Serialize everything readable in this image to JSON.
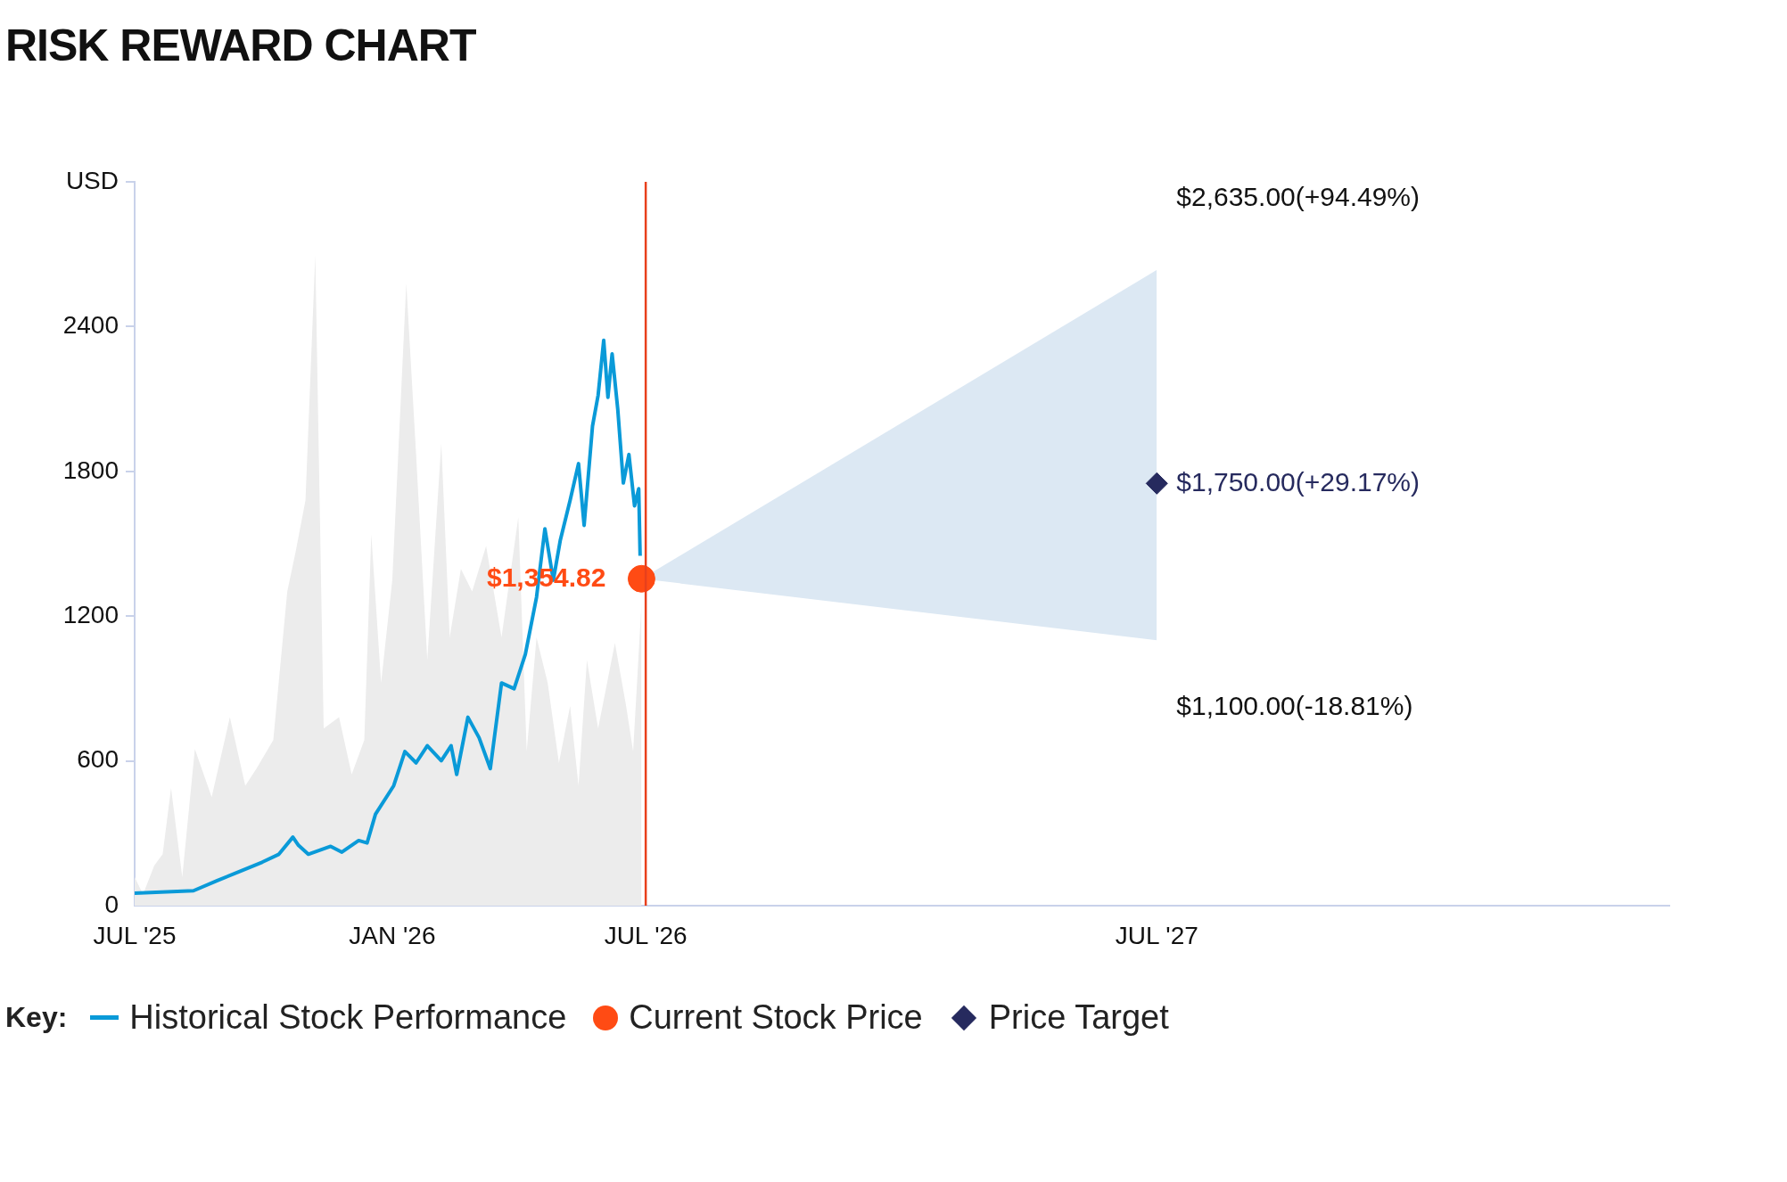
{
  "chart_data": {
    "type": "line",
    "title": "RISK REWARD CHART",
    "legend_title": "Key:",
    "legend": "bottom",
    "xlim": [
      "2025-07-01",
      "2028-07-01"
    ],
    "xticks": [
      {
        "value": "2025-07-01",
        "label": "JUL '25"
      },
      {
        "value": "2026-01-01",
        "label": "JAN '26"
      },
      {
        "value": "2026-07-01",
        "label": "JUL '26"
      },
      {
        "value": "2027-07-01",
        "label": "JUL '27"
      }
    ],
    "ylim": [
      0,
      3000
    ],
    "yticks": [
      0,
      600,
      1200,
      1800,
      2400,
      {
        "value": 3000,
        "label": "USD"
      }
    ],
    "ref_lines": [
      {
        "axis": "x",
        "value": "2026-07-01",
        "label": null,
        "color": "#e8401c"
      }
    ],
    "annotations": [
      {
        "text": "$2,635.00(+94.49%)",
        "x": "2027-07-01",
        "y": 2635
      },
      {
        "text": "$1,100.00(-18.81%)",
        "x": "2027-07-01",
        "y": 1100
      }
    ],
    "series": [
      {
        "type": "area",
        "color": "#ececec",
        "x": [
          "2025-07-01",
          "2025-07-07",
          "2025-07-15",
          "2025-07-21",
          "2025-07-27",
          "2025-08-04",
          "2025-08-13",
          "2025-08-25",
          "2025-09-07",
          "2025-09-18",
          "2025-09-26",
          "2025-10-08",
          "2025-10-18",
          "2025-10-24",
          "2025-10-31",
          "2025-11-07",
          "2025-11-13",
          "2025-11-24",
          "2025-12-03",
          "2025-12-12",
          "2025-12-17",
          "2025-12-24",
          "2026-01-01",
          "2026-01-11",
          "2026-01-18",
          "2026-01-26",
          "2026-02-05",
          "2026-02-11",
          "2026-02-19",
          "2026-02-27",
          "2026-03-09",
          "2026-03-20",
          "2026-04-01",
          "2026-04-07",
          "2026-04-14",
          "2026-04-22",
          "2026-04-30",
          "2026-05-08",
          "2026-05-14",
          "2026-05-20",
          "2026-05-28",
          "2026-06-09",
          "2026-06-17",
          "2026-06-22",
          "2026-06-28"
        ],
        "values": [
          118,
          47,
          166,
          213,
          488,
          118,
          649,
          450,
          781,
          497,
          568,
          686,
          1302,
          1468,
          1680,
          2698,
          734,
          781,
          544,
          686,
          1539,
          923,
          1349,
          2580,
          1870,
          1018,
          1917,
          1112,
          1396,
          1302,
          1491,
          1112,
          1610,
          639,
          1112,
          923,
          592,
          828,
          497,
          1018,
          734,
          1089,
          828,
          639,
          1254
        ]
      },
      {
        "name": "Historical Stock Performance",
        "color": "#0a9ad8",
        "marker": "none",
        "x": [
          "2025-07-01",
          "2025-08-12",
          "2025-08-29",
          "2025-09-14",
          "2025-09-30",
          "2025-10-12",
          "2025-10-22",
          "2025-10-26",
          "2025-11-02",
          "2025-11-18",
          "2025-11-26",
          "2025-12-08",
          "2025-12-14",
          "2025-12-20",
          "2026-01-02",
          "2026-01-10",
          "2026-01-18",
          "2026-01-26",
          "2026-02-05",
          "2026-02-12",
          "2026-02-16",
          "2026-02-24",
          "2026-03-04",
          "2026-03-12",
          "2026-03-20",
          "2026-03-29",
          "2026-04-06",
          "2026-04-14",
          "2026-04-20",
          "2026-04-26",
          "2026-05-01",
          "2026-05-08",
          "2026-05-14",
          "2026-05-18",
          "2026-05-24",
          "2026-05-28",
          "2026-06-01",
          "2026-06-04",
          "2026-06-07",
          "2026-06-11",
          "2026-06-15",
          "2026-06-19",
          "2026-06-23",
          "2026-06-26",
          "2026-06-27"
        ],
        "values": [
          52,
          62,
          104,
          142,
          180,
          213,
          284,
          250,
          213,
          246,
          222,
          270,
          260,
          379,
          497,
          639,
          592,
          663,
          601,
          663,
          544,
          781,
          696,
          568,
          923,
          899,
          1041,
          1278,
          1562,
          1349,
          1515,
          1680,
          1832,
          1576,
          1988,
          2116,
          2343,
          2107,
          2287,
          2059,
          1752,
          1870,
          1657,
          1728,
          1450
        ]
      },
      {
        "type": "area",
        "color": "#dce8f3",
        "x": [
          "2026-06-28",
          "2027-07-01"
        ],
        "values": [
          null,
          null
        ],
        "lower": [
          1354.82,
          1100
        ],
        "upper": [
          1354.82,
          2635
        ]
      },
      {
        "name": "Current Stock Price",
        "type": "scatter",
        "marker": "circle",
        "color": "#ff4b14",
        "x": [
          "2026-06-28"
        ],
        "values": [
          1354.82
        ],
        "value_labels": [
          "$1,354.82"
        ]
      },
      {
        "name": "Price Target",
        "type": "scatter",
        "marker": "diamond",
        "color": "#262a5e",
        "x": [
          "2027-07-01"
        ],
        "values": [
          1750
        ],
        "value_labels": [
          "$1,750.00(+29.17%)"
        ]
      }
    ]
  }
}
